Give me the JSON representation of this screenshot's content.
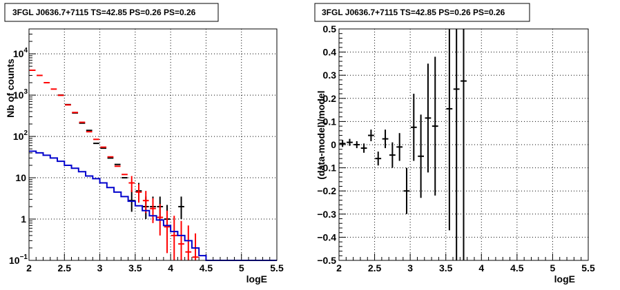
{
  "chart_data": [
    {
      "type": "line",
      "title": "3FGL J0636.7+7115 TS=42.85 PS=0.26 PS=0.26",
      "xlabel": "logE",
      "ylabel": "Nb of counts",
      "xlim": [
        2,
        5.5
      ],
      "ylim": [
        0.1,
        40000
      ],
      "yscale": "log",
      "grid": true,
      "x_ticks": [
        {
          "v": 2,
          "label": "2"
        },
        {
          "v": 2.5,
          "label": "2.5"
        },
        {
          "v": 3,
          "label": "3"
        },
        {
          "v": 3.5,
          "label": "3.5"
        },
        {
          "v": 4,
          "label": "4"
        },
        {
          "v": 4.5,
          "label": "4.5"
        },
        {
          "v": 5,
          "label": "5"
        },
        {
          "v": 5.5,
          "label": "5.5"
        }
      ],
      "y_ticks": [
        {
          "v": 0.1,
          "base": "10",
          "exp": "−1"
        },
        {
          "v": 1,
          "base": "1",
          "exp": ""
        },
        {
          "v": 10,
          "base": "10",
          "exp": ""
        },
        {
          "v": 100,
          "base": "10",
          "exp": "2"
        },
        {
          "v": 1000,
          "base": "10",
          "exp": "3"
        },
        {
          "v": 10000,
          "base": "10",
          "exp": "4"
        }
      ],
      "series": [
        {
          "kind": "points",
          "color": "#000000",
          "points": [
            {
              "x": 2.45,
              "y": 1000
            },
            {
              "x": 2.55,
              "y": 590
            },
            {
              "x": 2.65,
              "y": 370
            },
            {
              "x": 2.75,
              "y": 210
            },
            {
              "x": 2.85,
              "y": 140
            },
            {
              "x": 2.95,
              "y": 68
            },
            {
              "x": 3.05,
              "y": 52
            },
            {
              "x": 3.15,
              "y": 30
            },
            {
              "x": 3.25,
              "y": 21
            },
            {
              "x": 3.35,
              "y": 10
            },
            {
              "x": 3.45,
              "y": 2.8,
              "lo": 1.5,
              "hi": 5.0
            },
            {
              "x": 3.55,
              "y": 4.8,
              "lo": 3.0,
              "hi": 7.5
            },
            {
              "x": 3.65,
              "y": 2.0,
              "lo": 1.0,
              "hi": 3.5
            },
            {
              "x": 3.75,
              "y": 2.0,
              "lo": 1.0,
              "hi": 3.5
            },
            {
              "x": 3.85,
              "y": 2.0,
              "lo": 1.0,
              "hi": 3.5
            },
            {
              "x": 3.95,
              "y": 1.0,
              "lo": 0.3,
              "hi": 2.2
            },
            {
              "x": 4.15,
              "y": 2.0,
              "lo": 1.0,
              "hi": 3.5
            }
          ]
        },
        {
          "kind": "points",
          "color": "#ff0000",
          "points": [
            {
              "x": 2.05,
              "y": 4000
            },
            {
              "x": 2.15,
              "y": 3000
            },
            {
              "x": 2.25,
              "y": 2000
            },
            {
              "x": 2.35,
              "y": 1400
            },
            {
              "x": 2.45,
              "y": 990
            },
            {
              "x": 2.55,
              "y": 580
            },
            {
              "x": 2.65,
              "y": 380
            },
            {
              "x": 2.75,
              "y": 220
            },
            {
              "x": 2.85,
              "y": 130
            },
            {
              "x": 2.95,
              "y": 85
            },
            {
              "x": 3.05,
              "y": 55
            },
            {
              "x": 3.15,
              "y": 32
            },
            {
              "x": 3.25,
              "y": 19
            },
            {
              "x": 3.35,
              "y": 12
            },
            {
              "x": 3.45,
              "y": 7.5,
              "lo": 4.5,
              "hi": 11
            },
            {
              "x": 3.55,
              "y": 4.5,
              "lo": 2.5,
              "hi": 7
            },
            {
              "x": 3.65,
              "y": 2.8,
              "lo": 1.4,
              "hi": 4.8
            },
            {
              "x": 3.75,
              "y": 1.8,
              "lo": 0.8,
              "hi": 3.2
            },
            {
              "x": 3.85,
              "y": 1.1,
              "lo": 0.4,
              "hi": 2.3
            },
            {
              "x": 3.95,
              "y": 0.65,
              "lo": 0.15,
              "hi": 1.6
            },
            {
              "x": 4.05,
              "y": 0.4,
              "lo": 0.1,
              "hi": 1.2
            },
            {
              "x": 4.15,
              "y": 0.25,
              "lo": 0.1,
              "hi": 0.9
            },
            {
              "x": 4.25,
              "y": 0.16,
              "lo": 0.1,
              "hi": 0.7
            },
            {
              "x": 4.35,
              "y": 0.12,
              "lo": 0.1,
              "hi": 0.45
            }
          ]
        },
        {
          "kind": "step",
          "color": "#0000cc",
          "x_edges": [
            2.0,
            2.1,
            2.2,
            2.3,
            2.4,
            2.5,
            2.6,
            2.7,
            2.8,
            2.9,
            3.0,
            3.1,
            3.2,
            3.3,
            3.4,
            3.5,
            3.6,
            3.7,
            3.8,
            3.9,
            4.0,
            4.1,
            4.2,
            4.3,
            4.4,
            4.5,
            5.5
          ],
          "values": [
            44,
            40,
            35,
            30,
            25,
            20,
            17,
            14,
            11,
            9.5,
            7.5,
            5.8,
            4.5,
            3.5,
            2.7,
            2.1,
            1.6,
            1.2,
            0.95,
            0.7,
            0.5,
            0.4,
            0.3,
            0.2,
            0.13,
            0.1
          ]
        }
      ]
    },
    {
      "type": "scatter",
      "title": "3FGL J0636.7+7115 TS=42.85 PS=0.26 PS=0.26",
      "xlabel": "logE",
      "ylabel": "(data-model)/model",
      "xlim": [
        2,
        5.5
      ],
      "ylim": [
        -0.5,
        0.5
      ],
      "grid": true,
      "x_ticks": [
        {
          "v": 2,
          "label": "2"
        },
        {
          "v": 2.5,
          "label": "2.5"
        },
        {
          "v": 3,
          "label": "3"
        },
        {
          "v": 3.5,
          "label": "3.5"
        },
        {
          "v": 4,
          "label": "4"
        },
        {
          "v": 4.5,
          "label": "4.5"
        },
        {
          "v": 5,
          "label": "5"
        },
        {
          "v": 5.5,
          "label": "5.5"
        }
      ],
      "y_ticks": [
        {
          "v": -0.5,
          "label": "−0.5"
        },
        {
          "v": -0.4,
          "label": "−0.4"
        },
        {
          "v": -0.3,
          "label": "−0.3"
        },
        {
          "v": -0.2,
          "label": "−0.2"
        },
        {
          "v": -0.1,
          "label": "−0.1"
        },
        {
          "v": 0,
          "label": "0"
        },
        {
          "v": 0.1,
          "label": "0.1"
        },
        {
          "v": 0.2,
          "label": "0.2"
        },
        {
          "v": 0.3,
          "label": "0.3"
        },
        {
          "v": 0.4,
          "label": "0.4"
        },
        {
          "v": 0.5,
          "label": "0.5"
        }
      ],
      "series": [
        {
          "kind": "points",
          "color": "#000000",
          "points": [
            {
              "x": 2.05,
              "y": 0.005,
              "lo": -0.01,
              "hi": 0.02
            },
            {
              "x": 2.15,
              "y": 0.01,
              "lo": -0.005,
              "hi": 0.025
            },
            {
              "x": 2.25,
              "y": 0.0,
              "lo": -0.015,
              "hi": 0.015
            },
            {
              "x": 2.35,
              "y": -0.015,
              "lo": -0.035,
              "hi": 0.005
            },
            {
              "x": 2.45,
              "y": 0.04,
              "lo": 0.015,
              "hi": 0.065
            },
            {
              "x": 2.55,
              "y": -0.06,
              "lo": -0.09,
              "hi": -0.03
            },
            {
              "x": 2.65,
              "y": 0.025,
              "lo": -0.015,
              "hi": 0.065
            },
            {
              "x": 2.75,
              "y": -0.045,
              "lo": -0.1,
              "hi": 0.01
            },
            {
              "x": 2.85,
              "y": -0.01,
              "lo": -0.07,
              "hi": 0.05
            },
            {
              "x": 2.95,
              "y": -0.2,
              "lo": -0.3,
              "hi": -0.1
            },
            {
              "x": 3.05,
              "y": 0.075,
              "lo": -0.07,
              "hi": 0.22
            },
            {
              "x": 3.15,
              "y": -0.05,
              "lo": -0.23,
              "hi": 0.13
            },
            {
              "x": 3.25,
              "y": 0.115,
              "lo": -0.12,
              "hi": 0.35
            },
            {
              "x": 3.35,
              "y": 0.08,
              "lo": -0.22,
              "hi": 0.38
            },
            {
              "x": 3.55,
              "y": 0.155,
              "lo": -0.37,
              "hi": 0.5
            },
            {
              "x": 3.65,
              "y": 0.24,
              "lo": -0.5,
              "hi": 0.5
            },
            {
              "x": 3.75,
              "y": 0.275,
              "lo": -0.5,
              "hi": 0.5
            }
          ]
        }
      ]
    }
  ]
}
